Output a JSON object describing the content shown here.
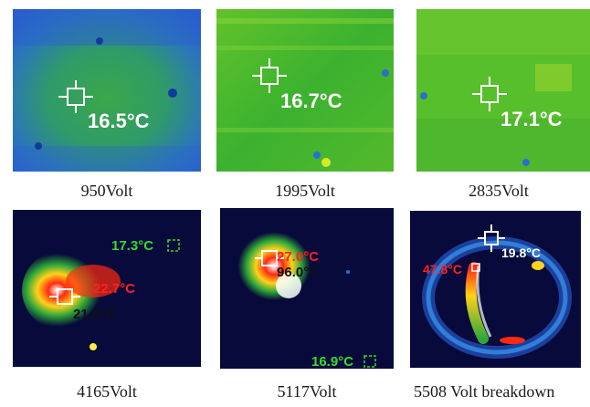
{
  "panels": [
    {
      "caption": "950Volt",
      "readings": [
        {
          "text": "16.5°C",
          "color": "#ffffff"
        }
      ]
    },
    {
      "caption": "1995Volt",
      "readings": [
        {
          "text": "16.7°C",
          "color": "#ffffff"
        }
      ]
    },
    {
      "caption": "2835Volt",
      "readings": [
        {
          "text": "17.1°C",
          "color": "#ffffff"
        }
      ]
    },
    {
      "caption": "4165Volt",
      "readings": [
        {
          "text": "17.3°C",
          "color": "#33dd33"
        },
        {
          "text": "22.7°C",
          "color": "#ff2020"
        },
        {
          "text": "21.8°C",
          "color": "#111111"
        }
      ]
    },
    {
      "caption": "5117Volt",
      "readings": [
        {
          "text": "27.0°C",
          "color": "#ff2020"
        },
        {
          "text": "96.0°C",
          "color": "#111111"
        },
        {
          "text": "16.9°C",
          "color": "#33dd33"
        }
      ]
    },
    {
      "caption": "5508 Volt breakdown",
      "readings": [
        {
          "text": "47.8°C",
          "color": "#ff2020"
        },
        {
          "text": "19.8°C",
          "color": "#ffffff"
        }
      ]
    }
  ],
  "palette": {
    "cold_blue": "#1a4fd8",
    "mid_green": "#2fb52f",
    "warm_yellow": "#d8e82a",
    "hot_red": "#ff2a10",
    "dark_navy": "#070a3a"
  }
}
